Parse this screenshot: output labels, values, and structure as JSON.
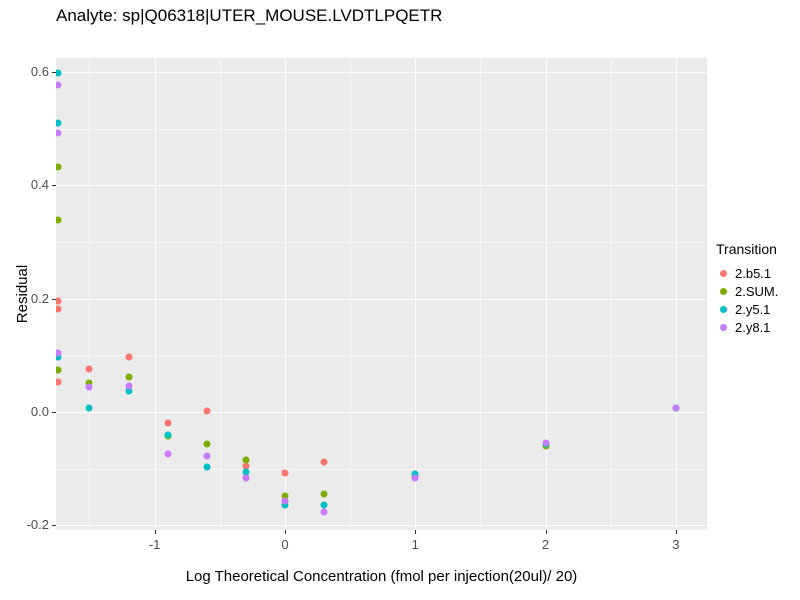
{
  "figure": {
    "title": "Analyte: sp|Q06318|UTER_MOUSE.LVDTLPQETR"
  },
  "chart_data": {
    "type": "scatter",
    "title": "Analyte: sp|Q06318|UTER_MOUSE.LVDTLPQETR",
    "xlabel": "Log Theoretical Concentration (fmol per injection(20ul)/ 20)",
    "ylabel": "Residual",
    "legend_title": "Transition",
    "legend_position": "right",
    "grid": true,
    "panel_bg": "#EBEBEB",
    "grid_major_color": "#FFFFFF",
    "grid_minor_color": "rgba(255,255,255,0.55)",
    "tick_label_color": "#4D4D4D",
    "tick_mark_color": "#333333",
    "xlim": [
      -1.757,
      3.239
    ],
    "ylim": [
      -0.208,
      0.625
    ],
    "x_ticks": {
      "values": [
        -1,
        0,
        1,
        2,
        3
      ],
      "labels": [
        "-1",
        "0",
        "1",
        "2",
        "3"
      ]
    },
    "y_ticks": {
      "values": [
        -0.2,
        0.0,
        0.2,
        0.4,
        0.6
      ],
      "labels": [
        "-0.2",
        "0.0",
        "0.2",
        "0.4",
        "0.6"
      ]
    },
    "x_minor_ticks": [
      -1.5,
      -0.5,
      0.5,
      1.5,
      2.5
    ],
    "y_minor_ticks": [
      -0.1,
      0.1,
      0.3,
      0.5
    ],
    "series": [
      {
        "name": "2.b5.1",
        "color": "#F8766D",
        "points": [
          [
            -1.74,
            0.196
          ],
          [
            -1.74,
            0.182
          ],
          [
            -1.74,
            0.053
          ],
          [
            -1.5,
            0.076
          ],
          [
            -1.2,
            0.097
          ],
          [
            -0.9,
            -0.019
          ],
          [
            -0.6,
            0.002
          ],
          [
            -0.3,
            -0.095
          ],
          [
            0.0,
            -0.107
          ],
          [
            0.3,
            -0.088
          ],
          [
            1.0,
            -0.112
          ],
          [
            2.0,
            -0.057
          ],
          [
            3.0,
            0.007
          ]
        ]
      },
      {
        "name": "2.SUM.",
        "color": "#7CAE00",
        "points": [
          [
            -1.74,
            0.432
          ],
          [
            -1.74,
            0.339
          ],
          [
            -1.74,
            0.075
          ],
          [
            -1.5,
            0.052
          ],
          [
            -1.2,
            0.062
          ],
          [
            -0.9,
            -0.042
          ],
          [
            -0.6,
            -0.057
          ],
          [
            -0.3,
            -0.085
          ],
          [
            0.0,
            -0.148
          ],
          [
            0.3,
            -0.144
          ],
          [
            1.0,
            -0.112
          ],
          [
            2.0,
            -0.06
          ],
          [
            3.0,
            0.007
          ]
        ]
      },
      {
        "name": "2.y5.1",
        "color": "#00BFC4",
        "points": [
          [
            -1.74,
            0.598
          ],
          [
            -1.74,
            0.51
          ],
          [
            -1.74,
            0.098
          ],
          [
            -1.5,
            0.008
          ],
          [
            -1.2,
            0.037
          ],
          [
            -0.9,
            -0.041
          ],
          [
            -0.6,
            -0.097
          ],
          [
            -0.3,
            -0.105
          ],
          [
            0.0,
            -0.164
          ],
          [
            0.3,
            -0.163
          ],
          [
            1.0,
            -0.11
          ],
          [
            2.0,
            -0.057
          ],
          [
            3.0,
            0.007
          ]
        ]
      },
      {
        "name": "2.y8.1",
        "color": "#C77CFF",
        "points": [
          [
            -1.74,
            0.578
          ],
          [
            -1.74,
            0.493
          ],
          [
            -1.74,
            0.105
          ],
          [
            -1.5,
            0.045
          ],
          [
            -1.2,
            0.046
          ],
          [
            -0.9,
            -0.073
          ],
          [
            -0.6,
            -0.078
          ],
          [
            -0.3,
            -0.117
          ],
          [
            0.0,
            -0.157
          ],
          [
            0.3,
            -0.176
          ],
          [
            1.0,
            -0.116
          ],
          [
            2.0,
            -0.055
          ],
          [
            3.0,
            0.007
          ]
        ]
      }
    ]
  }
}
